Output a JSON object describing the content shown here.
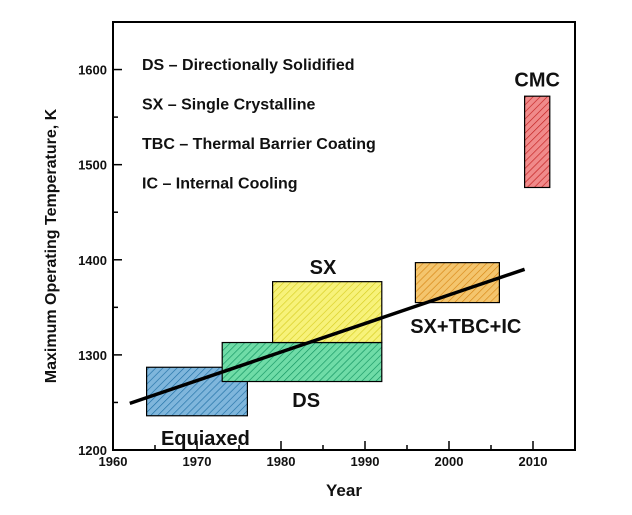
{
  "chart_data": {
    "type": "region-chart",
    "xlabel": "Year",
    "ylabel": "Maximum Operating Temperature, K",
    "xlim": [
      1960,
      2015
    ],
    "ylim": [
      1200,
      1650
    ],
    "xticks": [
      1960,
      1970,
      1980,
      1990,
      2000,
      2010
    ],
    "yticks": [
      1200,
      1300,
      1400,
      1500,
      1600
    ],
    "legend": [
      "DS – Directionally Solidified",
      "SX – Single Crystalline",
      "TBC – Thermal Barrier Coating",
      "IC – Internal Cooling"
    ],
    "regions": [
      {
        "label": "Equiaxed",
        "x0": 1964,
        "x1": 1976,
        "y0": 1236,
        "y1": 1287,
        "fill": "#7fb6dc",
        "hatch": "#1f6fa5"
      },
      {
        "label": "DS",
        "x0": 1973,
        "x1": 1992,
        "y0": 1272,
        "y1": 1313,
        "fill": "#6fdca7",
        "hatch": "#119360"
      },
      {
        "label": "SX",
        "x0": 1979,
        "x1": 1992,
        "y0": 1313,
        "y1": 1377,
        "fill": "#f7f27a",
        "hatch": "#d7ce22"
      },
      {
        "label": "SX+TBC+IC",
        "x0": 1996,
        "x1": 2006,
        "y0": 1355,
        "y1": 1397,
        "fill": "#f4c56d",
        "hatch": "#d78614"
      },
      {
        "label": "CMC",
        "x0": 2009,
        "x1": 2012,
        "y0": 1476,
        "y1": 1572,
        "fill": "#f08a8a",
        "hatch": "#c21f1f"
      }
    ],
    "trend_line": {
      "x": [
        1962,
        2009
      ],
      "y": [
        1249,
        1390
      ]
    }
  }
}
